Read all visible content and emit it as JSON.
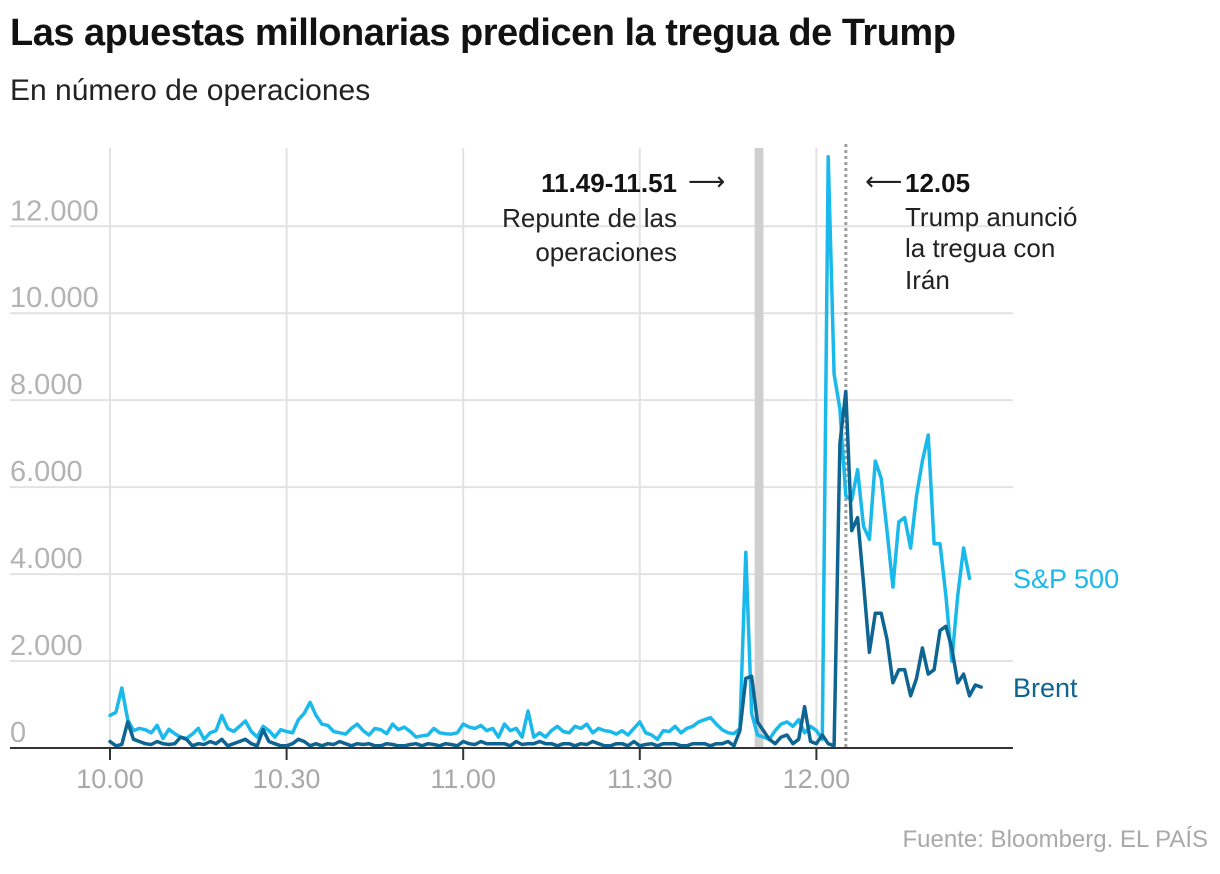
{
  "header": {
    "title": "Las apuestas millonarias predicen la tregua de Trump",
    "subtitle": "En número de operaciones"
  },
  "source": "Fuente: Bloomberg. EL PAÍS",
  "colors": {
    "sp500": "#1ab9ec",
    "brent": "#0f6591",
    "grid": "#e2e2e2",
    "axis": "#333333",
    "highlight_band": "#cfcfcf",
    "event_line": "#9e9e9e"
  },
  "annotations": {
    "spike_window": {
      "label": "11.49-11.51",
      "arrow": "⟶",
      "text": [
        "Repunte de las",
        "operaciones"
      ],
      "x_start": 109,
      "x_end": 111
    },
    "truce": {
      "label": "12.05",
      "arrow": "⟵",
      "text": [
        "Trump anunció",
        "la tregua con",
        "Irán"
      ],
      "x": 125
    }
  },
  "chart_data": {
    "type": "line",
    "x_unit": "minutes after 10.00",
    "xlim": [
      0,
      150
    ],
    "ylim": [
      0,
      13800
    ],
    "x_ticks": [
      {
        "x": 0,
        "label": "10.00"
      },
      {
        "x": 30,
        "label": "10.30"
      },
      {
        "x": 60,
        "label": "11.00"
      },
      {
        "x": 90,
        "label": "11.30"
      },
      {
        "x": 120,
        "label": "12.00"
      }
    ],
    "y_ticks": [
      {
        "y": 0,
        "label": "0"
      },
      {
        "y": 2000,
        "label": "2.000"
      },
      {
        "y": 4000,
        "label": "4.000"
      },
      {
        "y": 6000,
        "label": "6.000"
      },
      {
        "y": 8000,
        "label": "8.000"
      },
      {
        "y": 10000,
        "label": "10.000"
      },
      {
        "y": 12000,
        "label": "12.000"
      }
    ],
    "grid": true,
    "legend": "right-end labels",
    "series": [
      {
        "name": "S&P 500",
        "color": "#1ab9ec",
        "values": [
          750,
          820,
          1380,
          650,
          400,
          450,
          420,
          350,
          520,
          220,
          430,
          330,
          250,
          220,
          320,
          450,
          200,
          350,
          400,
          750,
          450,
          380,
          500,
          620,
          380,
          250,
          500,
          400,
          250,
          420,
          380,
          350,
          650,
          800,
          1050,
          750,
          550,
          520,
          380,
          350,
          320,
          450,
          550,
          400,
          300,
          450,
          420,
          330,
          550,
          420,
          480,
          380,
          250,
          280,
          300,
          450,
          350,
          330,
          320,
          350,
          550,
          480,
          450,
          520,
          400,
          450,
          250,
          550,
          400,
          450,
          250,
          850,
          250,
          350,
          250,
          400,
          500,
          380,
          350,
          500,
          450,
          550,
          350,
          450,
          400,
          380,
          320,
          400,
          300,
          450,
          600,
          350,
          300,
          200,
          400,
          380,
          500,
          350,
          450,
          500,
          600,
          650,
          700,
          550,
          420,
          350,
          330,
          450,
          4500,
          800,
          300,
          250,
          200,
          400,
          550,
          600,
          500,
          650,
          350,
          500,
          400,
          200,
          13600,
          8600,
          7800,
          5800,
          5700,
          6400,
          5100,
          4800,
          6600,
          6200,
          5000,
          3700,
          5200,
          5300,
          4600,
          5800,
          6600,
          7200,
          4700,
          4700,
          3500,
          2000,
          3500,
          4600,
          3900
        ],
        "end_label": "S&P 500"
      },
      {
        "name": "Brent",
        "color": "#0f6591",
        "values": [
          150,
          50,
          80,
          600,
          200,
          150,
          100,
          80,
          150,
          100,
          80,
          100,
          250,
          200,
          50,
          100,
          80,
          150,
          100,
          200,
          50,
          100,
          150,
          200,
          100,
          50,
          420,
          150,
          100,
          50,
          50,
          100,
          200,
          150,
          50,
          100,
          50,
          100,
          80,
          150,
          100,
          50,
          100,
          80,
          100,
          50,
          50,
          100,
          80,
          50,
          50,
          80,
          100,
          50,
          100,
          80,
          50,
          100,
          80,
          50,
          150,
          100,
          80,
          150,
          100,
          100,
          100,
          100,
          50,
          150,
          80,
          100,
          100,
          150,
          100,
          100,
          50,
          100,
          100,
          50,
          100,
          80,
          150,
          100,
          50,
          50,
          100,
          100,
          50,
          150,
          50,
          80,
          100,
          50,
          100,
          100,
          100,
          50,
          50,
          100,
          100,
          100,
          50,
          100,
          100,
          150,
          50,
          400,
          1600,
          1650,
          600,
          400,
          200,
          100,
          250,
          300,
          100,
          200,
          950,
          150,
          100,
          300,
          100,
          50,
          7000,
          8200,
          5000,
          5300,
          3800,
          2200,
          3100,
          3100,
          2500,
          1500,
          1800,
          1800,
          1200,
          1600,
          2300,
          1700,
          1800,
          2700,
          2800,
          2300,
          1500,
          1700,
          1200,
          1450,
          1400
        ],
        "end_label": "Brent"
      }
    ]
  }
}
